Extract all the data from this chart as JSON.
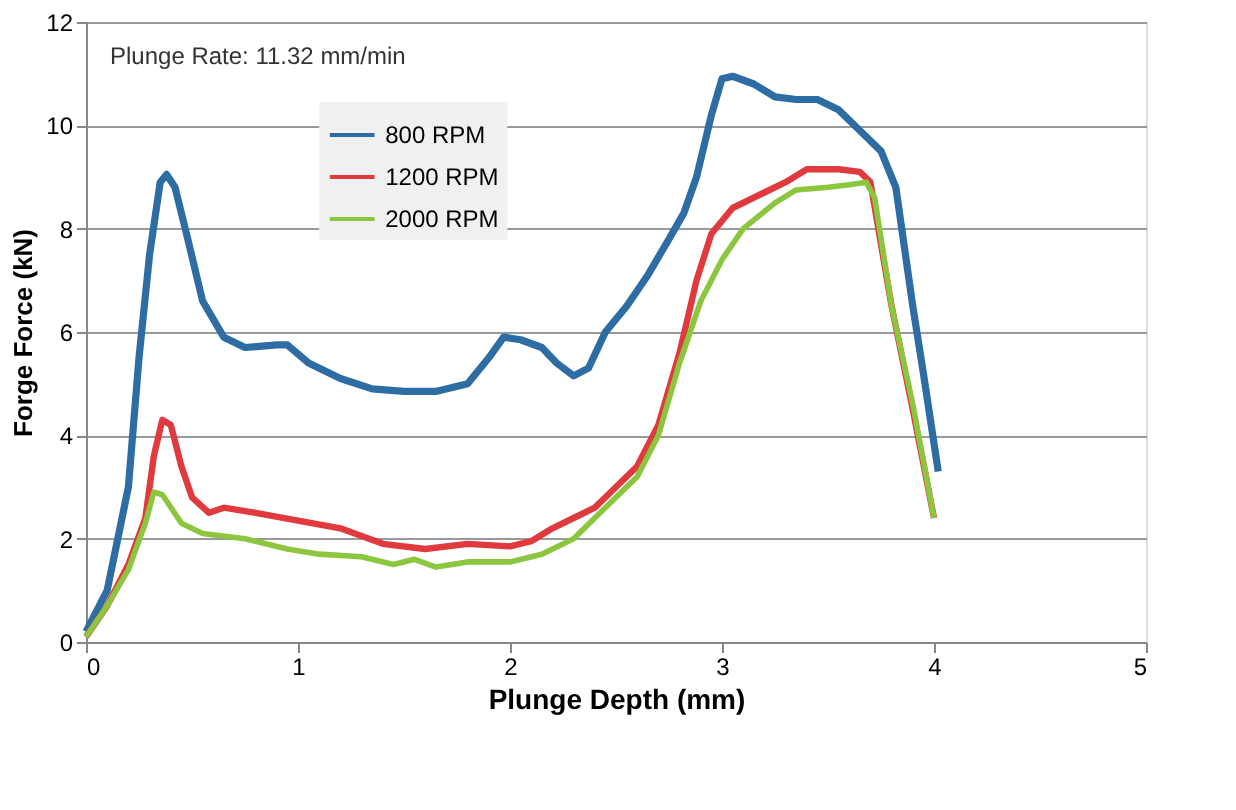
{
  "chart_data": {
    "type": "line",
    "xlabel": "Plunge Depth (mm)",
    "ylabel": "Forge Force (kN)",
    "annotations": [
      "Plunge Rate: 11.32 mm/min"
    ],
    "xlim": [
      0,
      5
    ],
    "xticks": [
      0,
      1,
      2,
      3,
      4,
      5
    ],
    "ylim": [
      0,
      12
    ],
    "yticks": [
      0,
      2,
      4,
      6,
      8,
      10,
      12
    ],
    "grid": "y",
    "legend": "top",
    "line_style": "solid",
    "marker": "none",
    "series": [
      {
        "name": "800 RPM",
        "color": "#2e6da4",
        "x": [
          0,
          0.1,
          0.2,
          0.25,
          0.3,
          0.35,
          0.38,
          0.42,
          0.48,
          0.55,
          0.65,
          0.75,
          0.9,
          0.95,
          1.05,
          1.2,
          1.35,
          1.5,
          1.65,
          1.8,
          1.9,
          1.97,
          2.05,
          2.15,
          2.22,
          2.3,
          2.37,
          2.45,
          2.55,
          2.65,
          2.75,
          2.82,
          2.88,
          2.95,
          3.0,
          3.05,
          3.15,
          3.25,
          3.35,
          3.45,
          3.55,
          3.65,
          3.75,
          3.82,
          3.9,
          3.95,
          4.02
        ],
        "values": [
          0.2,
          1.0,
          3.0,
          5.5,
          7.5,
          8.9,
          9.05,
          8.8,
          7.8,
          6.6,
          5.9,
          5.7,
          5.75,
          5.75,
          5.4,
          5.1,
          4.9,
          4.85,
          4.85,
          5.0,
          5.5,
          5.9,
          5.85,
          5.7,
          5.4,
          5.15,
          5.3,
          6.0,
          6.5,
          7.1,
          7.8,
          8.3,
          9.0,
          10.2,
          10.9,
          10.95,
          10.8,
          10.55,
          10.5,
          10.5,
          10.3,
          9.9,
          9.5,
          8.8,
          6.5,
          5.2,
          3.3
        ]
      },
      {
        "name": "1200 RPM",
        "color": "#e0393e",
        "x": [
          0,
          0.1,
          0.2,
          0.28,
          0.32,
          0.36,
          0.4,
          0.45,
          0.5,
          0.58,
          0.65,
          0.8,
          1.0,
          1.2,
          1.4,
          1.6,
          1.8,
          2.0,
          2.1,
          2.2,
          2.3,
          2.4,
          2.5,
          2.6,
          2.7,
          2.8,
          2.88,
          2.95,
          3.05,
          3.2,
          3.3,
          3.4,
          3.55,
          3.65,
          3.7,
          3.8,
          3.9,
          4.0
        ],
        "values": [
          0.1,
          0.7,
          1.5,
          2.4,
          3.6,
          4.3,
          4.2,
          3.4,
          2.8,
          2.5,
          2.6,
          2.5,
          2.35,
          2.2,
          1.9,
          1.8,
          1.9,
          1.85,
          1.95,
          2.2,
          2.4,
          2.6,
          3.0,
          3.4,
          4.2,
          5.6,
          7.0,
          7.9,
          8.4,
          8.7,
          8.9,
          9.15,
          9.15,
          9.1,
          8.9,
          6.5,
          4.5,
          2.4
        ]
      },
      {
        "name": "2000 RPM",
        "color": "#8cc63f",
        "x": [
          0,
          0.1,
          0.2,
          0.28,
          0.32,
          0.36,
          0.45,
          0.55,
          0.75,
          0.95,
          1.1,
          1.3,
          1.45,
          1.55,
          1.65,
          1.8,
          2.0,
          2.15,
          2.3,
          2.4,
          2.5,
          2.6,
          2.7,
          2.8,
          2.9,
          3.0,
          3.1,
          3.25,
          3.35,
          3.5,
          3.6,
          3.68,
          3.72,
          3.8,
          3.9,
          4.0
        ],
        "values": [
          0.1,
          0.7,
          1.4,
          2.3,
          2.9,
          2.85,
          2.3,
          2.1,
          2.0,
          1.8,
          1.7,
          1.65,
          1.5,
          1.6,
          1.45,
          1.55,
          1.55,
          1.7,
          2.0,
          2.4,
          2.8,
          3.2,
          4.0,
          5.4,
          6.6,
          7.4,
          8.0,
          8.5,
          8.75,
          8.8,
          8.85,
          8.9,
          8.6,
          6.5,
          4.6,
          2.4
        ]
      }
    ]
  }
}
